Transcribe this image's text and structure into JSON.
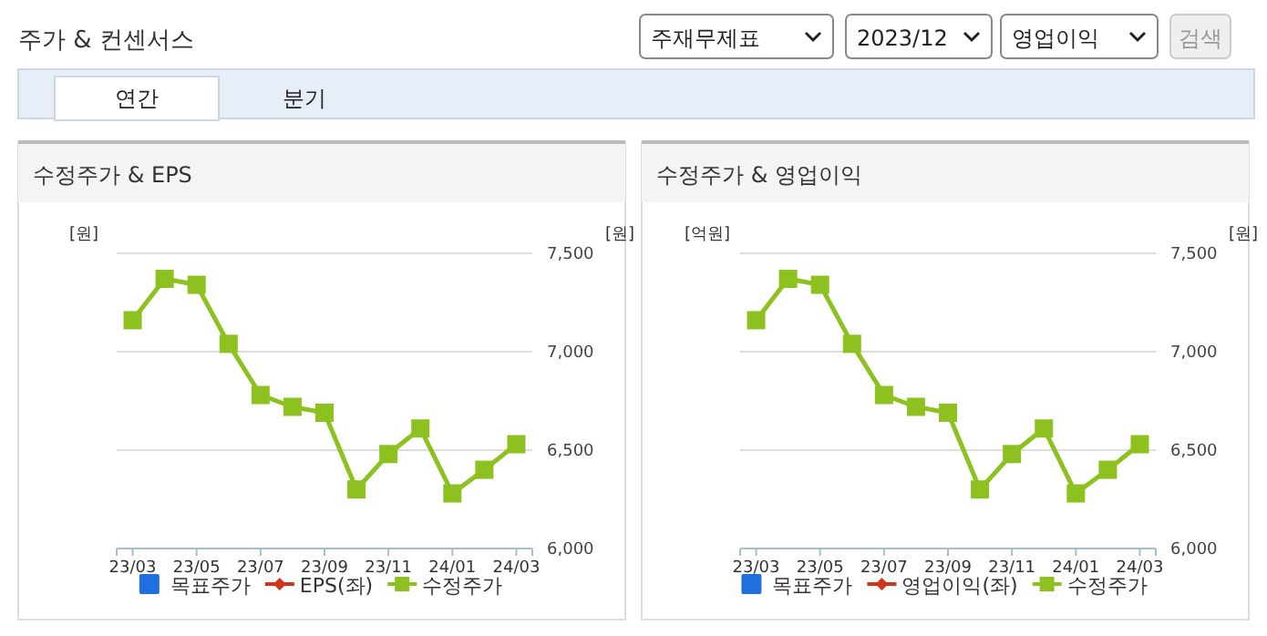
{
  "chart_data": [
    {
      "type": "other",
      "title": "주가 & 컨센서스",
      "annotations": [
        "주재무제표",
        "2023/12",
        "영업이익",
        "검색",
        "연간",
        "분기"
      ]
    },
    {
      "type": "line",
      "title": "수정주가 & EPS",
      "ylabel": "[원]",
      "y2label": "[원]",
      "categories": [
        "23/03",
        null,
        "23/05",
        null,
        "23/07",
        null,
        "23/09",
        null,
        "23/11",
        null,
        "24/01",
        null,
        "24/03"
      ],
      "y2lim": [
        6000,
        7500
      ],
      "y2ticks": [
        {
          "value": 6000,
          "label": "6,000"
        },
        {
          "value": 6500,
          "label": "6,500"
        },
        {
          "value": 7000,
          "label": "7,000"
        },
        {
          "value": 7500,
          "label": "7,500"
        }
      ],
      "grid": "y",
      "legend": "bottom",
      "series": [
        {
          "name": "목표주가",
          "type": "bar",
          "color": "#1f6fde",
          "values": [
            null,
            null,
            null,
            null,
            null,
            null,
            null,
            null,
            null,
            null,
            null,
            null,
            null
          ]
        },
        {
          "name": "EPS(좌)",
          "type": "line",
          "marker": "diamond",
          "color": "#d0341a",
          "values": [
            null,
            null,
            null,
            null,
            null,
            null,
            null,
            null,
            null,
            null,
            null,
            null,
            null
          ]
        },
        {
          "name": "수정주가",
          "type": "line",
          "marker": "square",
          "axis": "y2",
          "color": "#8cc11f",
          "values": [
            7160,
            7370,
            7340,
            7040,
            6780,
            6720,
            6690,
            6300,
            6480,
            6610,
            6280,
            6400,
            6530
          ]
        }
      ]
    },
    {
      "type": "line",
      "title": "수정주가 & 영업이익",
      "ylabel": "[억원]",
      "y2label": "[원]",
      "categories": [
        "23/03",
        null,
        "23/05",
        null,
        "23/07",
        null,
        "23/09",
        null,
        "23/11",
        null,
        "24/01",
        null,
        "24/03"
      ],
      "y2lim": [
        6000,
        7500
      ],
      "y2ticks": [
        {
          "value": 6000,
          "label": "6,000"
        },
        {
          "value": 6500,
          "label": "6,500"
        },
        {
          "value": 7000,
          "label": "7,000"
        },
        {
          "value": 7500,
          "label": "7,500"
        }
      ],
      "grid": "y",
      "legend": "bottom",
      "series": [
        {
          "name": "목표주가",
          "type": "bar",
          "color": "#1f6fde",
          "values": [
            null,
            null,
            null,
            null,
            null,
            null,
            null,
            null,
            null,
            null,
            null,
            null,
            null
          ]
        },
        {
          "name": "영업이익(좌)",
          "type": "line",
          "marker": "diamond",
          "color": "#d0341a",
          "values": [
            null,
            null,
            null,
            null,
            null,
            null,
            null,
            null,
            null,
            null,
            null,
            null,
            null
          ]
        },
        {
          "name": "수정주가",
          "type": "line",
          "marker": "square",
          "axis": "y2",
          "color": "#8cc11f",
          "values": [
            7160,
            7370,
            7340,
            7040,
            6780,
            6720,
            6690,
            6300,
            6480,
            6610,
            6280,
            6400,
            6530
          ]
        }
      ]
    }
  ]
}
